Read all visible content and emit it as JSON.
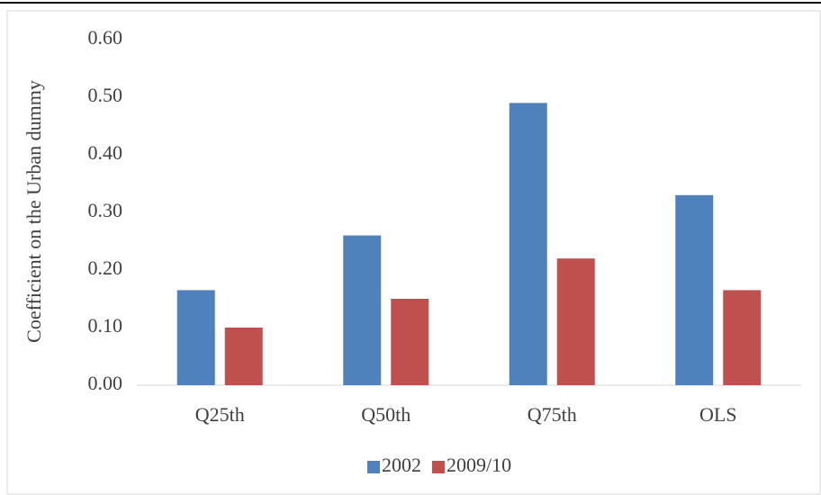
{
  "chart_data": {
    "type": "bar",
    "y_label": "Coefficient on the Urban dummy",
    "categories": [
      "Q25th",
      "Q50th",
      "Q75th",
      "OLS"
    ],
    "series": [
      {
        "name": "2002",
        "color": "#4f81bd",
        "values": [
          0.165,
          0.26,
          0.49,
          0.33
        ]
      },
      {
        "name": "2009/10",
        "color": "#c0504d",
        "values": [
          0.1,
          0.15,
          0.22,
          0.165
        ]
      }
    ],
    "ylim": [
      0,
      0.6
    ],
    "yticks": [
      {
        "value": 0,
        "label": "0.00"
      },
      {
        "value": 0.1,
        "label": "0.10"
      },
      {
        "value": 0.2,
        "label": "0.20"
      },
      {
        "value": 0.3,
        "label": "0.30"
      },
      {
        "value": 0.4,
        "label": "0.40"
      },
      {
        "value": 0.5,
        "label": "0.50"
      },
      {
        "value": 0.6,
        "label": "0.60"
      }
    ],
    "grid": false,
    "legend": "bottom"
  }
}
